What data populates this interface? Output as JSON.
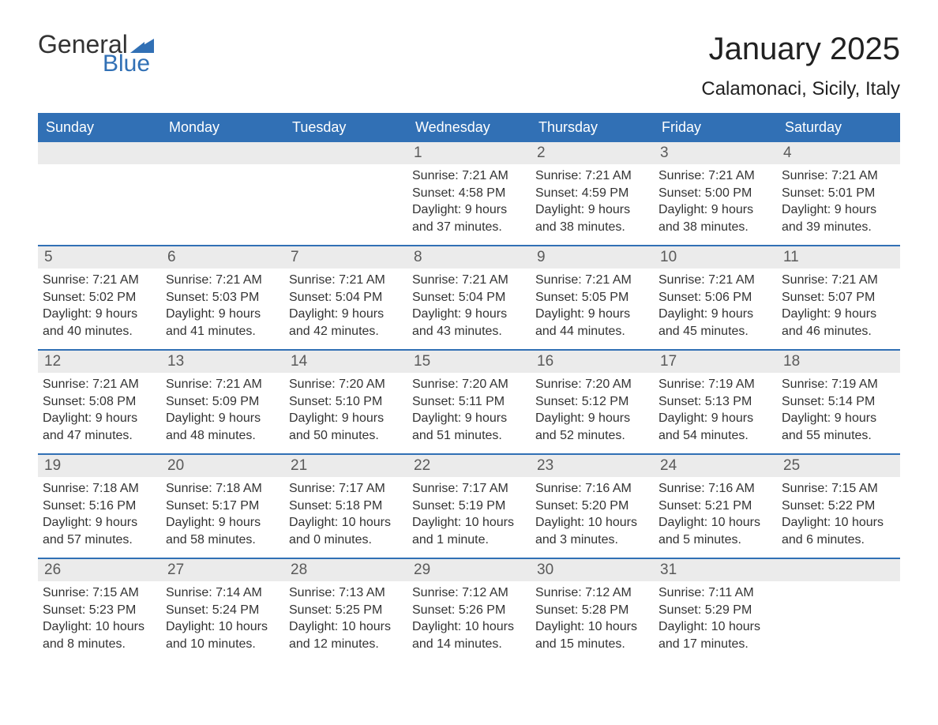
{
  "logo": {
    "word1": "General",
    "word2": "Blue",
    "word1_color": "#333333",
    "word2_color": "#3170b5",
    "triangle_color": "#3170b5"
  },
  "title": "January 2025",
  "location": "Calamonaci, Sicily, Italy",
  "colors": {
    "header_bg": "#3170b5",
    "header_text": "#ffffff",
    "daynum_bg": "#ebebeb",
    "daynum_text": "#5a5a5a",
    "body_text": "#333333",
    "week_border": "#3170b5",
    "background": "#ffffff"
  },
  "typography": {
    "title_fontsize": 40,
    "location_fontsize": 24,
    "weekday_fontsize": 18,
    "daynum_fontsize": 19,
    "content_fontsize": 16
  },
  "weekdays": [
    "Sunday",
    "Monday",
    "Tuesday",
    "Wednesday",
    "Thursday",
    "Friday",
    "Saturday"
  ],
  "weeks": [
    [
      null,
      null,
      null,
      {
        "n": "1",
        "sunrise": "7:21 AM",
        "sunset": "4:58 PM",
        "daylight": "9 hours and 37 minutes."
      },
      {
        "n": "2",
        "sunrise": "7:21 AM",
        "sunset": "4:59 PM",
        "daylight": "9 hours and 38 minutes."
      },
      {
        "n": "3",
        "sunrise": "7:21 AM",
        "sunset": "5:00 PM",
        "daylight": "9 hours and 38 minutes."
      },
      {
        "n": "4",
        "sunrise": "7:21 AM",
        "sunset": "5:01 PM",
        "daylight": "9 hours and 39 minutes."
      }
    ],
    [
      {
        "n": "5",
        "sunrise": "7:21 AM",
        "sunset": "5:02 PM",
        "daylight": "9 hours and 40 minutes."
      },
      {
        "n": "6",
        "sunrise": "7:21 AM",
        "sunset": "5:03 PM",
        "daylight": "9 hours and 41 minutes."
      },
      {
        "n": "7",
        "sunrise": "7:21 AM",
        "sunset": "5:04 PM",
        "daylight": "9 hours and 42 minutes."
      },
      {
        "n": "8",
        "sunrise": "7:21 AM",
        "sunset": "5:04 PM",
        "daylight": "9 hours and 43 minutes."
      },
      {
        "n": "9",
        "sunrise": "7:21 AM",
        "sunset": "5:05 PM",
        "daylight": "9 hours and 44 minutes."
      },
      {
        "n": "10",
        "sunrise": "7:21 AM",
        "sunset": "5:06 PM",
        "daylight": "9 hours and 45 minutes."
      },
      {
        "n": "11",
        "sunrise": "7:21 AM",
        "sunset": "5:07 PM",
        "daylight": "9 hours and 46 minutes."
      }
    ],
    [
      {
        "n": "12",
        "sunrise": "7:21 AM",
        "sunset": "5:08 PM",
        "daylight": "9 hours and 47 minutes."
      },
      {
        "n": "13",
        "sunrise": "7:21 AM",
        "sunset": "5:09 PM",
        "daylight": "9 hours and 48 minutes."
      },
      {
        "n": "14",
        "sunrise": "7:20 AM",
        "sunset": "5:10 PM",
        "daylight": "9 hours and 50 minutes."
      },
      {
        "n": "15",
        "sunrise": "7:20 AM",
        "sunset": "5:11 PM",
        "daylight": "9 hours and 51 minutes."
      },
      {
        "n": "16",
        "sunrise": "7:20 AM",
        "sunset": "5:12 PM",
        "daylight": "9 hours and 52 minutes."
      },
      {
        "n": "17",
        "sunrise": "7:19 AM",
        "sunset": "5:13 PM",
        "daylight": "9 hours and 54 minutes."
      },
      {
        "n": "18",
        "sunrise": "7:19 AM",
        "sunset": "5:14 PM",
        "daylight": "9 hours and 55 minutes."
      }
    ],
    [
      {
        "n": "19",
        "sunrise": "7:18 AM",
        "sunset": "5:16 PM",
        "daylight": "9 hours and 57 minutes."
      },
      {
        "n": "20",
        "sunrise": "7:18 AM",
        "sunset": "5:17 PM",
        "daylight": "9 hours and 58 minutes."
      },
      {
        "n": "21",
        "sunrise": "7:17 AM",
        "sunset": "5:18 PM",
        "daylight": "10 hours and 0 minutes."
      },
      {
        "n": "22",
        "sunrise": "7:17 AM",
        "sunset": "5:19 PM",
        "daylight": "10 hours and 1 minute."
      },
      {
        "n": "23",
        "sunrise": "7:16 AM",
        "sunset": "5:20 PM",
        "daylight": "10 hours and 3 minutes."
      },
      {
        "n": "24",
        "sunrise": "7:16 AM",
        "sunset": "5:21 PM",
        "daylight": "10 hours and 5 minutes."
      },
      {
        "n": "25",
        "sunrise": "7:15 AM",
        "sunset": "5:22 PM",
        "daylight": "10 hours and 6 minutes."
      }
    ],
    [
      {
        "n": "26",
        "sunrise": "7:15 AM",
        "sunset": "5:23 PM",
        "daylight": "10 hours and 8 minutes."
      },
      {
        "n": "27",
        "sunrise": "7:14 AM",
        "sunset": "5:24 PM",
        "daylight": "10 hours and 10 minutes."
      },
      {
        "n": "28",
        "sunrise": "7:13 AM",
        "sunset": "5:25 PM",
        "daylight": "10 hours and 12 minutes."
      },
      {
        "n": "29",
        "sunrise": "7:12 AM",
        "sunset": "5:26 PM",
        "daylight": "10 hours and 14 minutes."
      },
      {
        "n": "30",
        "sunrise": "7:12 AM",
        "sunset": "5:28 PM",
        "daylight": "10 hours and 15 minutes."
      },
      {
        "n": "31",
        "sunrise": "7:11 AM",
        "sunset": "5:29 PM",
        "daylight": "10 hours and 17 minutes."
      },
      null
    ]
  ],
  "labels": {
    "sunrise": "Sunrise: ",
    "sunset": "Sunset: ",
    "daylight": "Daylight: "
  }
}
